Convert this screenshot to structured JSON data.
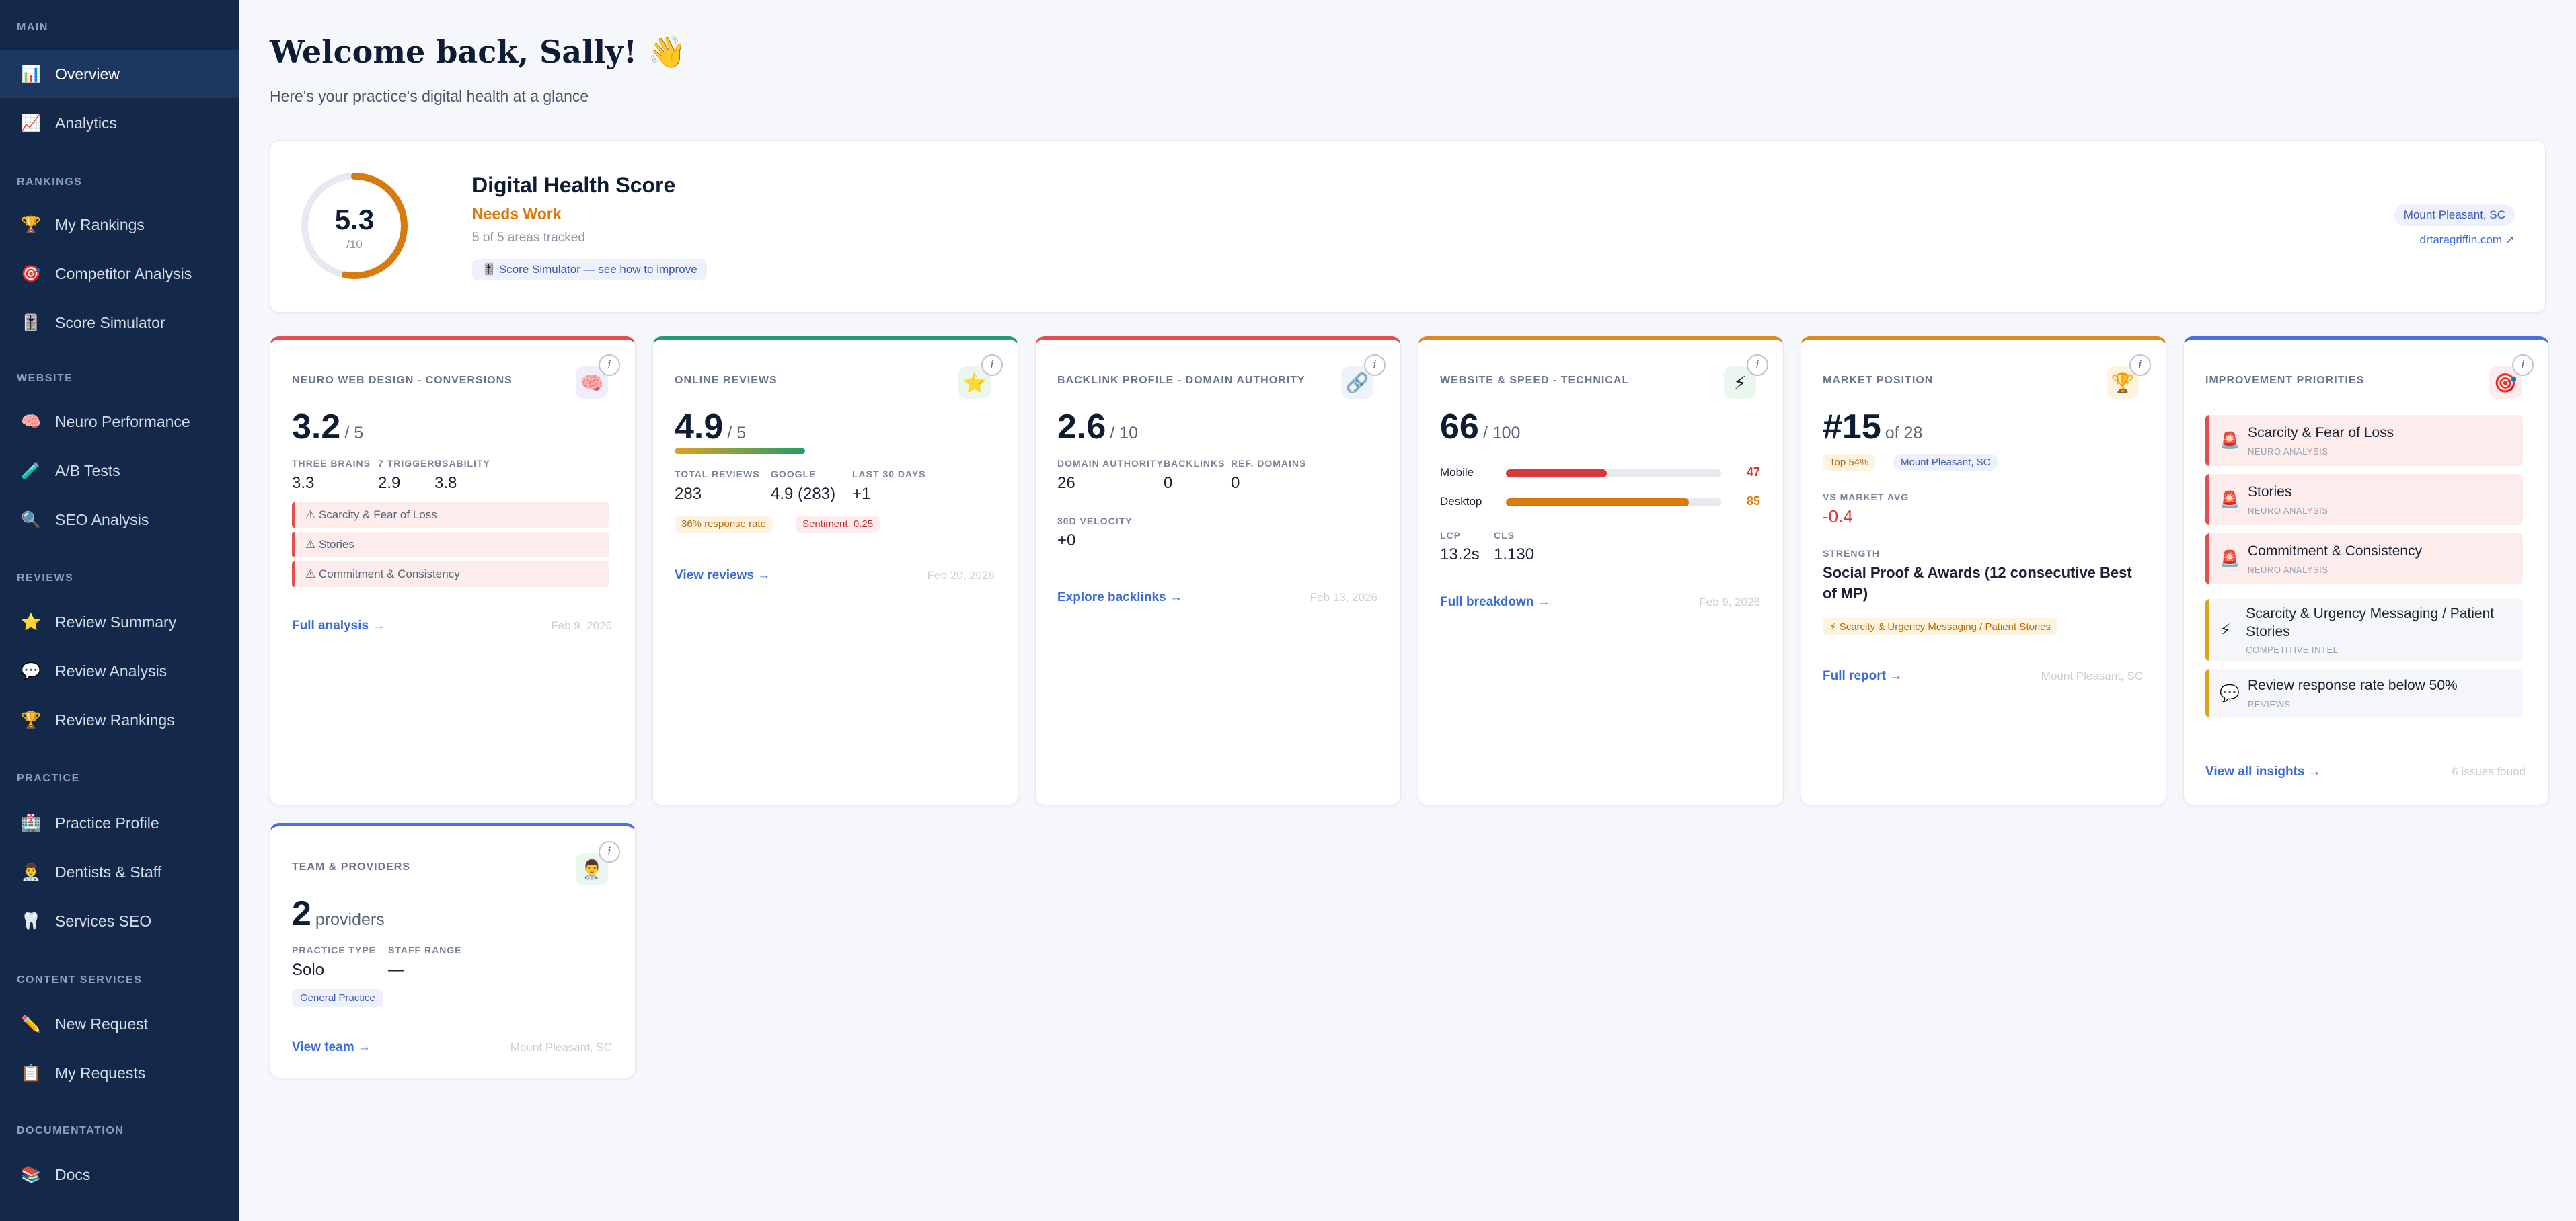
{
  "sidebar": {
    "sections": [
      {
        "label": "MAIN",
        "items": [
          {
            "label": "Overview",
            "icon": "📊",
            "name": "overview",
            "active": true
          },
          {
            "label": "Analytics",
            "icon": "📈",
            "name": "analytics"
          }
        ]
      },
      {
        "label": "RANKINGS",
        "items": [
          {
            "label": "My Rankings",
            "icon": "🏆",
            "name": "my-rankings"
          },
          {
            "label": "Competitor Analysis",
            "icon": "🎯",
            "name": "competitor-analysis"
          },
          {
            "label": "Score Simulator",
            "icon": "🎚️",
            "name": "score-simulator"
          }
        ]
      },
      {
        "label": "WEBSITE",
        "items": [
          {
            "label": "Neuro Performance",
            "icon": "🧠",
            "name": "neuro-performance"
          },
          {
            "label": "A/B Tests",
            "icon": "🧪",
            "name": "ab-tests"
          },
          {
            "label": "SEO Analysis",
            "icon": "🔍",
            "name": "seo-analysis"
          }
        ]
      },
      {
        "label": "REVIEWS",
        "items": [
          {
            "label": "Review Summary",
            "icon": "⭐",
            "name": "review-summary"
          },
          {
            "label": "Review Analysis",
            "icon": "💬",
            "name": "review-analysis"
          },
          {
            "label": "Review Rankings",
            "icon": "🏆",
            "name": "review-rankings"
          }
        ]
      },
      {
        "label": "PRACTICE",
        "items": [
          {
            "label": "Practice Profile",
            "icon": "🏥",
            "name": "practice-profile"
          },
          {
            "label": "Dentists & Staff",
            "icon": "👨‍⚕️",
            "name": "dentists-staff"
          },
          {
            "label": "Services SEO",
            "icon": "🦷",
            "name": "services-seo"
          }
        ]
      },
      {
        "label": "CONTENT SERVICES",
        "items": [
          {
            "label": "New Request",
            "icon": "✏️",
            "name": "new-request"
          },
          {
            "label": "My Requests",
            "icon": "📋",
            "name": "my-requests"
          }
        ]
      },
      {
        "label": "DOCUMENTATION",
        "items": [
          {
            "label": "Docs",
            "icon": "📚",
            "name": "docs"
          }
        ]
      }
    ]
  },
  "header": {
    "title": "Welcome back, Sally! 👋",
    "subtitle": "Here's your practice's digital health at a glance"
  },
  "health": {
    "score": "5.3",
    "out_of": "/10",
    "score_value": 5.3,
    "score_max": 10,
    "title": "Digital Health Score",
    "status": "Needs Work",
    "areas": "5 of 5 areas tracked",
    "simulator": "🎚️ Score Simulator — see how to improve",
    "location": "Mount Pleasant, SC",
    "website": "drtaragriffin.com ↗",
    "accent": "#d97a0e"
  },
  "cards": {
    "neuro": {
      "title": "NEURO WEB DESIGN - CONVERSIONS",
      "icon": "🧠",
      "score": "3.2",
      "out_of": "/ 5",
      "metrics": [
        {
          "label": "THREE BRAINS",
          "value": "3.3"
        },
        {
          "label": "7 TRIGGERS",
          "value": "2.9"
        },
        {
          "label": "USABILITY",
          "value": "3.8"
        }
      ],
      "warnings": [
        "⚠ Scarcity & Fear of Loss",
        "⚠ Stories",
        "⚠ Commitment & Consistency"
      ],
      "link": "Full analysis →",
      "date": "Feb 9, 2026",
      "color": "#e34d4d"
    },
    "reviews": {
      "title": "ONLINE REVIEWS",
      "icon": "⭐",
      "score": "4.9",
      "out_of": "/ 5",
      "metrics": [
        {
          "label": "TOTAL REVIEWS",
          "value": "283"
        },
        {
          "label": "GOOGLE",
          "value": "4.9 (283)"
        },
        {
          "label": "LAST 30 DAYS",
          "value": "+1"
        }
      ],
      "tags": [
        "36% response rate",
        "Sentiment: 0.25"
      ],
      "link": "View reviews →",
      "date": "Feb 20, 2026",
      "color": "#1f9d6b"
    },
    "backlink": {
      "title": "BACKLINK PROFILE - DOMAIN AUTHORITY",
      "icon": "🔗",
      "score": "2.6",
      "out_of": "/ 10",
      "metrics": [
        {
          "label": "DOMAIN AUTHORITY",
          "value": "26"
        },
        {
          "label": "BACKLINKS",
          "value": "0"
        },
        {
          "label": "REF. DOMAINS",
          "value": "0"
        }
      ],
      "velocity_label": "30D VELOCITY",
      "velocity": "+0",
      "link": "Explore backlinks →",
      "date": "Feb 13, 2026",
      "color": "#e34d4d"
    },
    "speed": {
      "title": "WEBSITE & SPEED - TECHNICAL",
      "icon": "⚡",
      "score": "66",
      "out_of": "/ 100",
      "bars": [
        {
          "label": "Mobile",
          "value": 47,
          "display": "47",
          "color": "#d63a3a"
        },
        {
          "label": "Desktop",
          "value": 85,
          "display": "85",
          "color": "#d97a0e"
        }
      ],
      "metrics": [
        {
          "label": "LCP",
          "value": "13.2s"
        },
        {
          "label": "CLS",
          "value": "1.130"
        }
      ],
      "link": "Full breakdown →",
      "date": "Feb 9, 2026",
      "color": "#e08a1e"
    },
    "market": {
      "title": "MARKET POSITION",
      "icon": "🏆",
      "rank": "#15",
      "of": "of 28",
      "tags": [
        "Top 54%",
        "Mount Pleasant, SC"
      ],
      "vs_label": "VS MARKET AVG",
      "vs": "-0.4",
      "strength_label": "STRENGTH",
      "strength": "Social Proof & Awards (12 consecutive Best of MP)",
      "gap": "⚡ Scarcity & Urgency Messaging / Patient Stories",
      "link": "Full report →",
      "date": "Mount Pleasant, SC",
      "color": "#e08a1e"
    },
    "priorities": {
      "title": "IMPROVEMENT PRIORITIES",
      "icon": "🎯",
      "items": [
        {
          "icon": "🚨",
          "title": "Scarcity & Fear of Loss",
          "source": "NEURO ANALYSIS",
          "tone": "red"
        },
        {
          "icon": "🚨",
          "title": "Stories",
          "source": "NEURO ANALYSIS",
          "tone": "red"
        },
        {
          "icon": "🚨",
          "title": "Commitment & Consistency",
          "source": "NEURO ANALYSIS",
          "tone": "red"
        },
        {
          "icon": "⚡",
          "title": "Scarcity & Urgency Messaging / Patient Stories",
          "source": "COMPETITIVE INTEL",
          "tone": "orange"
        },
        {
          "icon": "💬",
          "title": "Review response rate below 50%",
          "source": "REVIEWS",
          "tone": "orange"
        }
      ],
      "link": "View all insights →",
      "date": "6 issues found",
      "color": "#4a6fe0"
    },
    "team": {
      "title": "TEAM & PROVIDERS",
      "icon": "👨‍⚕️",
      "count": "2",
      "unit": "providers",
      "metrics": [
        {
          "label": "PRACTICE TYPE",
          "value": "Solo"
        },
        {
          "label": "STAFF RANGE",
          "value": "—"
        }
      ],
      "tag": "General Practice",
      "link": "View team →",
      "date": "Mount Pleasant, SC",
      "color": "#4a6fe0"
    }
  },
  "info_glyph": "i"
}
